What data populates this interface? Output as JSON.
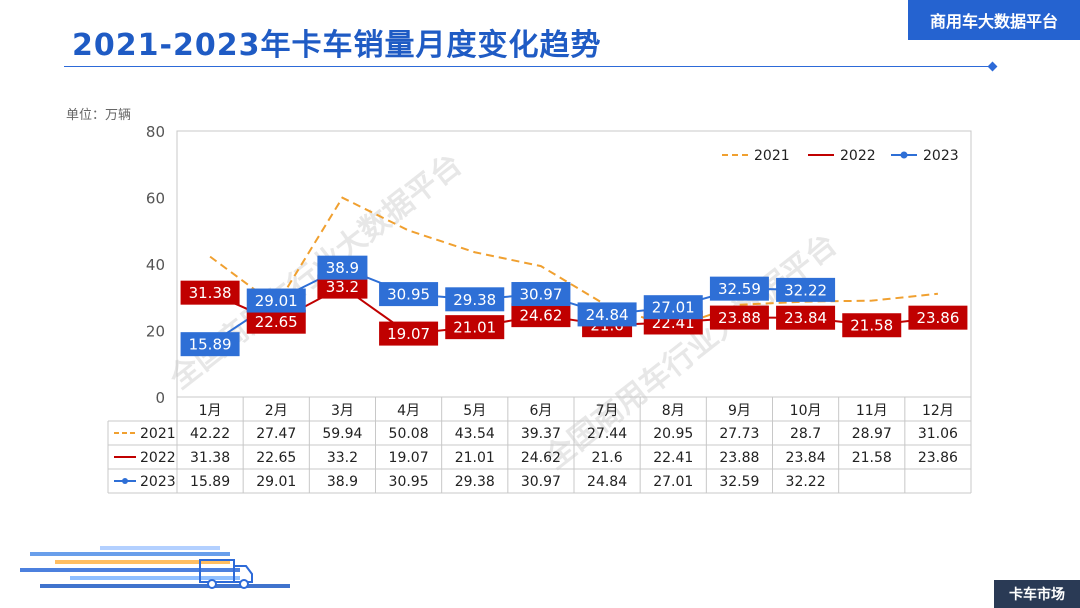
{
  "header": {
    "title": "2021-2023年卡车销量月度变化趋势",
    "brand": "商用车大数据平台",
    "footer": "卡车市场"
  },
  "watermark": "全国商用车行业大数据平台",
  "chart_data": {
    "type": "line",
    "unit": "单位：万辆",
    "categories": [
      "1月",
      "2月",
      "3月",
      "4月",
      "5月",
      "6月",
      "7月",
      "8月",
      "9月",
      "10月",
      "11月",
      "12月"
    ],
    "ylim": [
      0,
      80
    ],
    "yticks": [
      0,
      20,
      40,
      60,
      80
    ],
    "legend_position": "top-right",
    "series": [
      {
        "name": "2021",
        "color": "#f0a030",
        "style": "dashed",
        "data_labels": false,
        "values": [
          42.22,
          27.47,
          59.94,
          50.08,
          43.54,
          39.37,
          27.44,
          20.95,
          27.73,
          28.7,
          28.97,
          31.06
        ]
      },
      {
        "name": "2022",
        "color": "#c00000",
        "style": "solid",
        "data_labels": true,
        "values": [
          31.38,
          22.65,
          33.2,
          19.07,
          21.01,
          24.62,
          21.6,
          22.41,
          23.88,
          23.84,
          21.58,
          23.86
        ]
      },
      {
        "name": "2023",
        "color": "#2e6fd6",
        "style": "solid-marker",
        "data_labels": true,
        "values": [
          15.89,
          29.01,
          38.9,
          30.95,
          29.38,
          30.97,
          24.84,
          27.01,
          32.59,
          32.22,
          null,
          null
        ]
      }
    ],
    "table_rows": [
      {
        "name": "2021",
        "cells": [
          "42.22",
          "27.47",
          "59.94",
          "50.08",
          "43.54",
          "39.37",
          "27.44",
          "20.95",
          "27.73",
          "28.7",
          "28.97",
          "31.06"
        ]
      },
      {
        "name": "2022",
        "cells": [
          "31.38",
          "22.65",
          "33.2",
          "19.07",
          "21.01",
          "24.62",
          "21.6",
          "22.41",
          "23.88",
          "23.84",
          "21.58",
          "23.86"
        ]
      },
      {
        "name": "2023",
        "cells": [
          "15.89",
          "29.01",
          "38.9",
          "30.95",
          "29.38",
          "30.97",
          "24.84",
          "27.01",
          "32.59",
          "32.22",
          "",
          ""
        ]
      }
    ]
  }
}
